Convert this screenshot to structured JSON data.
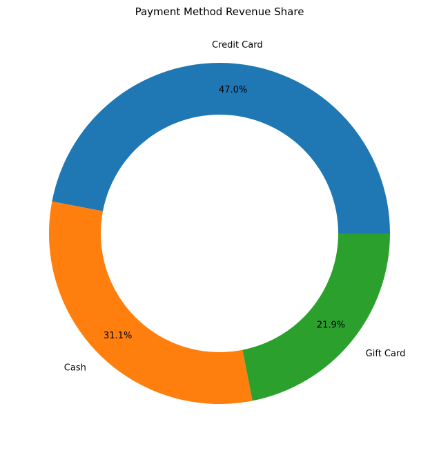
{
  "chart_data": {
    "type": "pie",
    "donut": true,
    "title": "Payment Method Revenue Share",
    "slices": [
      {
        "label": "Credit Card",
        "value": 47.0,
        "pct_label": "47.0%",
        "color": "#1f77b4"
      },
      {
        "label": "Cash",
        "value": 31.1,
        "pct_label": "31.1%",
        "color": "#ff7f0e"
      },
      {
        "label": "Gift Card",
        "value": 21.9,
        "pct_label": "21.9%",
        "color": "#2ca02c"
      }
    ],
    "start_angle_deg": 0,
    "direction": "counterclockwise",
    "legend": "none"
  }
}
